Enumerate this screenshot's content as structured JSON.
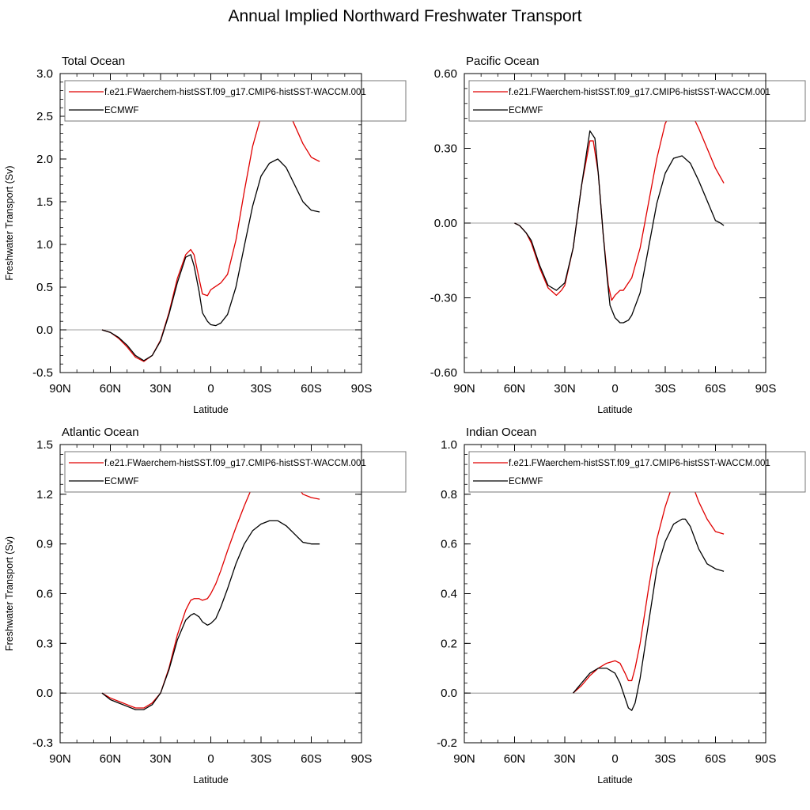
{
  "figure_title": "Annual Implied Northward Freshwater Transport",
  "colors": {
    "model": "#e00000",
    "obs": "#000000",
    "zero_line": "#808080",
    "legend_border": "#777777"
  },
  "chart_data": [
    {
      "type": "line",
      "title": "Total Ocean",
      "xlabel": "Latitude",
      "ylabel": "Freshwater Transport (Sv)",
      "xlim": [
        90,
        -90
      ],
      "ylim": [
        -0.5,
        3.0
      ],
      "x_ticks": [
        90,
        60,
        30,
        0,
        -30,
        -60,
        -90
      ],
      "x_tick_labels": [
        "90N",
        "60N",
        "30N",
        "0",
        "30S",
        "60S",
        "90S"
      ],
      "y_ticks": [
        -0.5,
        0.0,
        0.5,
        1.0,
        1.5,
        2.0,
        2.5,
        3.0
      ],
      "y_tick_labels": [
        "-0.5",
        "0.0",
        "0.5",
        "1.0",
        "1.5",
        "2.0",
        "2.5",
        "3.0"
      ],
      "legend_position": "top",
      "series": [
        {
          "name": "f.e21.FWaerchem-histSST.f09_g17.CMIP6-histSST-WACCM.001",
          "color": "#e00000",
          "x": [
            65,
            60,
            55,
            50,
            45,
            40,
            35,
            30,
            25,
            20,
            15,
            12,
            10,
            7,
            5,
            2,
            0,
            -3,
            -6,
            -10,
            -15,
            -20,
            -25,
            -30,
            -35,
            -40,
            -45,
            -50,
            -55,
            -60,
            -65
          ],
          "y": [
            0,
            -0.03,
            -0.1,
            -0.2,
            -0.32,
            -0.37,
            -0.3,
            -0.12,
            0.2,
            0.6,
            0.88,
            0.94,
            0.88,
            0.6,
            0.42,
            0.4,
            0.47,
            0.51,
            0.55,
            0.65,
            1.05,
            1.62,
            2.15,
            2.5,
            2.68,
            2.72,
            2.62,
            2.4,
            2.18,
            2.02,
            1.97
          ]
        },
        {
          "name": "ECMWF",
          "color": "#000000",
          "x": [
            65,
            60,
            55,
            50,
            45,
            40,
            35,
            30,
            25,
            20,
            15,
            12,
            10,
            7,
            5,
            2,
            0,
            -3,
            -6,
            -10,
            -15,
            -20,
            -25,
            -30,
            -35,
            -40,
            -45,
            -50,
            -55,
            -60,
            -65
          ],
          "y": [
            0,
            -0.03,
            -0.09,
            -0.18,
            -0.3,
            -0.36,
            -0.3,
            -0.13,
            0.18,
            0.55,
            0.85,
            0.88,
            0.75,
            0.45,
            0.2,
            0.1,
            0.06,
            0.05,
            0.08,
            0.18,
            0.5,
            0.98,
            1.45,
            1.8,
            1.95,
            2.0,
            1.9,
            1.7,
            1.5,
            1.4,
            1.38
          ]
        }
      ]
    },
    {
      "type": "line",
      "title": "Pacific Ocean",
      "xlabel": "Latitude",
      "ylabel": "",
      "xlim": [
        90,
        -90
      ],
      "ylim": [
        -0.6,
        0.6
      ],
      "x_ticks": [
        90,
        60,
        30,
        0,
        -30,
        -60,
        -90
      ],
      "x_tick_labels": [
        "90N",
        "60N",
        "30N",
        "0",
        "30S",
        "60S",
        "90S"
      ],
      "y_ticks": [
        -0.6,
        -0.3,
        0.0,
        0.3,
        0.6
      ],
      "y_tick_labels": [
        "-0.60",
        "-0.30",
        "0.00",
        "0.30",
        "0.60"
      ],
      "legend_position": "top",
      "series": [
        {
          "name": "f.e21.FWaerchem-histSST.f09_g17.CMIP6-histSST-WACCM.001",
          "color": "#e00000",
          "x": [
            60,
            57,
            53,
            50,
            45,
            40,
            35,
            32,
            30,
            25,
            20,
            15,
            13,
            10,
            7,
            4,
            2,
            0,
            -3,
            -5,
            -10,
            -15,
            -20,
            -25,
            -30,
            -35,
            -40,
            -45,
            -50,
            -55,
            -60,
            -65
          ],
          "y": [
            0,
            -0.01,
            -0.04,
            -0.08,
            -0.18,
            -0.26,
            -0.29,
            -0.27,
            -0.25,
            -0.1,
            0.15,
            0.33,
            0.33,
            0.2,
            -0.05,
            -0.25,
            -0.31,
            -0.29,
            -0.27,
            -0.27,
            -0.22,
            -0.1,
            0.08,
            0.26,
            0.4,
            0.46,
            0.48,
            0.45,
            0.38,
            0.3,
            0.22,
            0.16
          ]
        },
        {
          "name": "ECMWF",
          "color": "#000000",
          "x": [
            60,
            57,
            53,
            50,
            45,
            40,
            35,
            30,
            25,
            20,
            15,
            12,
            10,
            7,
            5,
            3,
            0,
            -3,
            -5,
            -8,
            -10,
            -15,
            -20,
            -25,
            -30,
            -35,
            -40,
            -45,
            -50,
            -55,
            -60,
            -63,
            -65
          ],
          "y": [
            0,
            -0.01,
            -0.04,
            -0.07,
            -0.17,
            -0.25,
            -0.27,
            -0.24,
            -0.1,
            0.15,
            0.37,
            0.34,
            0.2,
            -0.05,
            -0.2,
            -0.33,
            -0.38,
            -0.4,
            -0.4,
            -0.39,
            -0.37,
            -0.28,
            -0.1,
            0.08,
            0.2,
            0.26,
            0.27,
            0.24,
            0.17,
            0.09,
            0.01,
            0.0,
            -0.01
          ]
        }
      ]
    },
    {
      "type": "line",
      "title": "Atlantic Ocean",
      "xlabel": "Latitude",
      "ylabel": "Freshwater Transport (Sv)",
      "xlim": [
        90,
        -90
      ],
      "ylim": [
        -0.3,
        1.5
      ],
      "x_ticks": [
        90,
        60,
        30,
        0,
        -30,
        -60,
        -90
      ],
      "x_tick_labels": [
        "90N",
        "60N",
        "30N",
        "0",
        "30S",
        "60S",
        "90S"
      ],
      "y_ticks": [
        -0.3,
        0.0,
        0.3,
        0.6,
        0.9,
        1.2,
        1.5
      ],
      "y_tick_labels": [
        "-0.3",
        "0.0",
        "0.3",
        "0.6",
        "0.9",
        "1.2",
        "1.5"
      ],
      "legend_position": "top",
      "series": [
        {
          "name": "f.e21.FWaerchem-histSST.f09_g17.CMIP6-histSST-WACCM.001",
          "color": "#e00000",
          "x": [
            65,
            60,
            55,
            50,
            45,
            40,
            35,
            30,
            25,
            20,
            15,
            12,
            10,
            7,
            5,
            2,
            0,
            -3,
            -6,
            -10,
            -15,
            -20,
            -25,
            -30,
            -35,
            -40,
            -45,
            -50,
            -55,
            -60,
            -65
          ],
          "y": [
            0,
            -0.03,
            -0.05,
            -0.07,
            -0.09,
            -0.09,
            -0.06,
            0.0,
            0.15,
            0.35,
            0.5,
            0.56,
            0.57,
            0.57,
            0.56,
            0.57,
            0.6,
            0.66,
            0.74,
            0.86,
            1.0,
            1.13,
            1.25,
            1.31,
            1.35,
            1.36,
            1.33,
            1.27,
            1.2,
            1.18,
            1.17
          ]
        },
        {
          "name": "ECMWF",
          "color": "#000000",
          "x": [
            65,
            60,
            55,
            50,
            45,
            40,
            35,
            30,
            25,
            20,
            15,
            12,
            10,
            7,
            5,
            2,
            0,
            -3,
            -6,
            -10,
            -15,
            -20,
            -25,
            -30,
            -35,
            -40,
            -45,
            -50,
            -55,
            -60,
            -65
          ],
          "y": [
            0,
            -0.04,
            -0.06,
            -0.08,
            -0.1,
            -0.1,
            -0.07,
            0.0,
            0.14,
            0.32,
            0.44,
            0.47,
            0.48,
            0.46,
            0.43,
            0.41,
            0.42,
            0.45,
            0.52,
            0.63,
            0.78,
            0.9,
            0.98,
            1.02,
            1.04,
            1.04,
            1.01,
            0.96,
            0.91,
            0.9,
            0.9
          ]
        }
      ]
    },
    {
      "type": "line",
      "title": "Indian Ocean",
      "xlabel": "Latitude",
      "ylabel": "",
      "xlim": [
        90,
        -90
      ],
      "ylim": [
        -0.2,
        1.0
      ],
      "x_ticks": [
        90,
        60,
        30,
        0,
        -30,
        -60,
        -90
      ],
      "x_tick_labels": [
        "90N",
        "60N",
        "30N",
        "0",
        "30S",
        "60S",
        "90S"
      ],
      "y_ticks": [
        -0.2,
        0.0,
        0.2,
        0.4,
        0.6,
        0.8,
        1.0
      ],
      "y_tick_labels": [
        "-0.2",
        "0.0",
        "0.2",
        "0.4",
        "0.6",
        "0.8",
        "1.0"
      ],
      "legend_position": "top",
      "series": [
        {
          "name": "f.e21.FWaerchem-histSST.f09_g17.CMIP6-histSST-WACCM.001",
          "color": "#e00000",
          "x": [
            25,
            20,
            15,
            10,
            5,
            0,
            -3,
            -6,
            -8,
            -10,
            -12,
            -15,
            -20,
            -25,
            -30,
            -35,
            -40,
            -42,
            -45,
            -50,
            -55,
            -60,
            -65
          ],
          "y": [
            0,
            0.03,
            0.07,
            0.1,
            0.12,
            0.13,
            0.12,
            0.08,
            0.05,
            0.05,
            0.1,
            0.2,
            0.42,
            0.62,
            0.75,
            0.85,
            0.88,
            0.89,
            0.86,
            0.77,
            0.7,
            0.65,
            0.64
          ]
        },
        {
          "name": "ECMWF",
          "color": "#000000",
          "x": [
            25,
            20,
            15,
            10,
            5,
            0,
            -3,
            -6,
            -8,
            -10,
            -12,
            -15,
            -20,
            -25,
            -30,
            -35,
            -40,
            -42,
            -45,
            -50,
            -55,
            -60,
            -65
          ],
          "y": [
            0,
            0.04,
            0.08,
            0.1,
            0.1,
            0.08,
            0.04,
            -0.02,
            -0.06,
            -0.07,
            -0.04,
            0.06,
            0.28,
            0.5,
            0.61,
            0.68,
            0.7,
            0.7,
            0.67,
            0.58,
            0.52,
            0.5,
            0.49
          ]
        }
      ]
    }
  ]
}
